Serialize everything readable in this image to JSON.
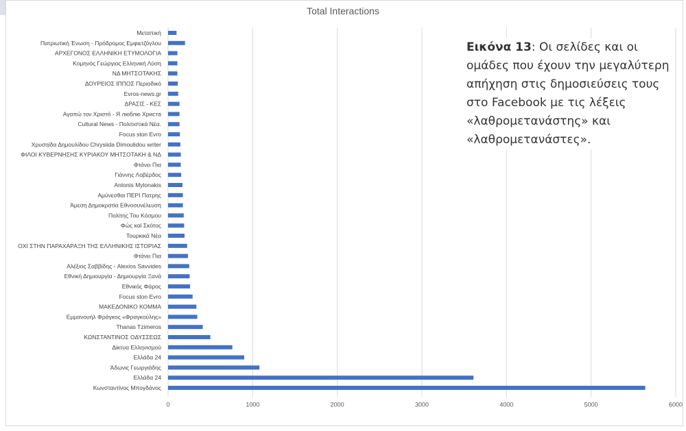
{
  "caption": {
    "label": "Εικόνα 13",
    "text": ": Οι σελίδες και οι ομάδες που έχουν την μεγαλύτερη απήχηση στις δημοσιεύσεις τους στο Facebook με τις λέξεις «λαθρομετανάστης» και «λαθρομετανάστες»."
  },
  "chart_data": {
    "type": "bar",
    "orientation": "horizontal",
    "title": "Total Interactions",
    "xlabel": "",
    "ylabel": "",
    "xlim": [
      0,
      6000
    ],
    "xticks": [
      0,
      1000,
      2000,
      3000,
      4000,
      5000,
      6000
    ],
    "grid": true,
    "bar_color": "#4472c4",
    "categories": [
      "Μεταπική",
      "Πατριωτική Ένωση - Πρόδρομος Εμφιετζόγλου",
      "ΑΡΧΕΓΟΝΟΣ ΕΛΛΗΝΙΚΗ ΕΤΥΜΟΛΟΓΙΑ",
      "Κομηνός Γεώργιος Ελληνική Λύση",
      "ΝΔ ΜΗΤΣΟΤΑΚΗΣ",
      "ΔΟΥΡΕΙΟΣ ΙΠΠΟΣ Περιοδικό",
      "Evros-news.gr",
      "ΔΡΑΣΙΣ - ΚΕΣ",
      "Αγαπώ τον Χριστό - Я люблю Христа",
      "Cultural News - Πολιτιστικά Νέα.",
      "Focus ston Evro",
      "Χρυσηίδα Δημουλίδου   Chrysiida Dimoulidou   writer",
      "ΦΙΛΟΙ ΚΥΒΕΡΝΗΣΗΣ ΚΥΡΙΑΚΟΥ ΜΗΤΣΟΤΑΚΗ & ΝΔ",
      "Φτάνει Πια",
      "Γιάννης Λοβέρδος",
      "Antonis Mylonakis",
      "Αμύνεσθαι ΠΕΡΙ Πατρης",
      "Άμεση Δημοκρατία Εθνοσυνέλευση",
      "Πολίτης Του Κόσμου",
      "Φώς καί Σκότος",
      "Τουρκικά Νέα",
      "ΟΧΙ ΣΤΗΝ ΠΑΡΑΧΑΡΑΞΗ ΤΗΣ ΕΛΛΗΝΙΚΗΣ ΙΣΤΟΡΙΑΣ",
      "Φτάνει Πια",
      "Αλέξιος Σαββίδης - Alexios Savvides",
      "Εθνική Δημιουργία - Δημιουργία Ξανά",
      "Εθνικός Φάρος",
      "Focus ston Evro",
      "ΜΑΚΕΔΟΝΙΚΟ ΚΟΜΜΑ",
      "Εμμανουήλ Φράγκος «Φραγκούλης»",
      "Thanas Tzimeros",
      "ΚΩΝΣΤΑΝΤΙΝΟΣ ΟΔΥΣΣΕΩΣ",
      "Δίκτυα Ελληνισμού",
      "Ελλάδα 24",
      "Άδωνις Γεωργιάδης",
      "Ελλάδα 24",
      "Κωνσταντίνος Μπογδάνος"
    ],
    "values": [
      100,
      200,
      110,
      110,
      110,
      115,
      120,
      135,
      135,
      135,
      140,
      145,
      150,
      150,
      155,
      170,
      175,
      175,
      185,
      190,
      195,
      225,
      235,
      250,
      255,
      260,
      290,
      335,
      345,
      410,
      500,
      760,
      900,
      1080,
      3610,
      5640
    ]
  }
}
